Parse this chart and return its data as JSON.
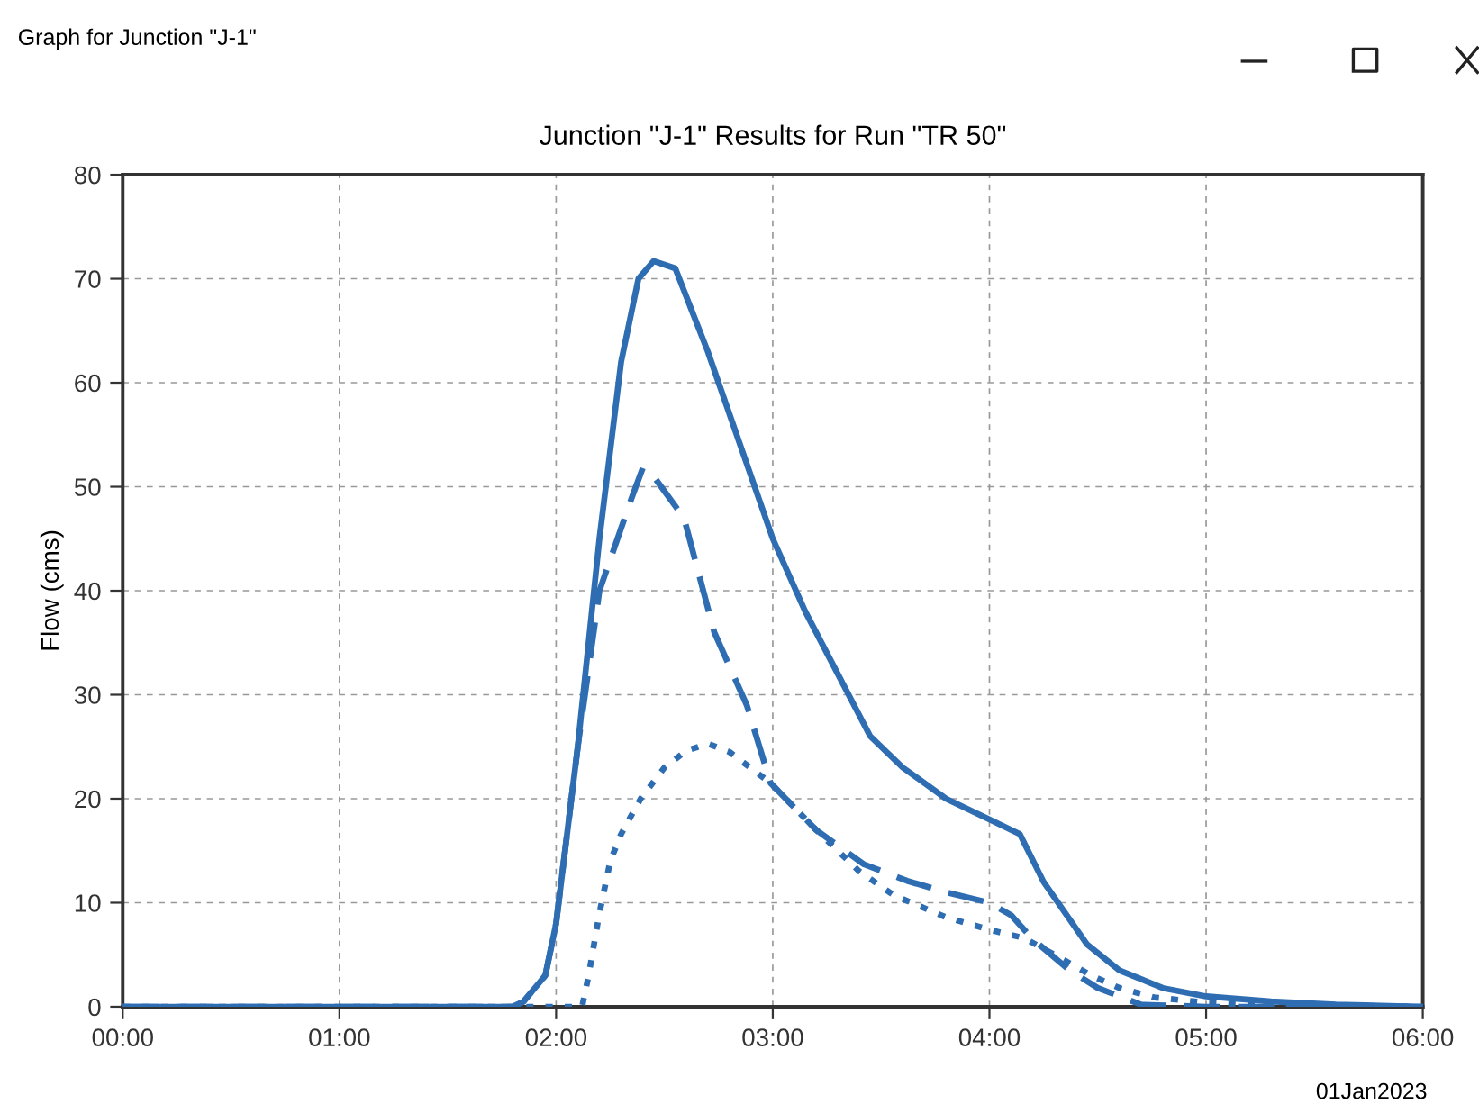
{
  "chart_data": {
    "type": "line",
    "title": "Junction \"J-1\" Results for Run \"TR 50\"",
    "ylabel": "Flow (cms)",
    "annotations": [
      "Graph for Junction \"J-1\"",
      "01Jan2023"
    ],
    "xlim": [
      0,
      6
    ],
    "ylim": [
      0,
      80
    ],
    "xticks": [
      {
        "value": 0,
        "label": "00:00"
      },
      {
        "value": 1,
        "label": "01:00"
      },
      {
        "value": 2,
        "label": "02:00"
      },
      {
        "value": 3,
        "label": "03:00"
      },
      {
        "value": 4,
        "label": "04:00"
      },
      {
        "value": 5,
        "label": "05:00"
      },
      {
        "value": 6,
        "label": "06:00"
      }
    ],
    "yticks": [
      0,
      10,
      20,
      30,
      40,
      50,
      60,
      70,
      80
    ],
    "grid": true,
    "marker": "none",
    "series": [
      {
        "color": "#2f6db3",
        "line_style": "solid",
        "x": [
          0,
          1.8,
          1.85,
          1.95,
          2.0,
          2.1,
          2.2,
          2.3,
          2.38,
          2.45,
          2.55,
          2.7,
          2.85,
          3.0,
          3.15,
          3.3,
          3.45,
          3.6,
          3.8,
          4.0,
          4.14,
          4.25,
          4.45,
          4.6,
          4.8,
          5.0,
          5.3,
          5.6,
          6.0
        ],
        "values": [
          0,
          0,
          0.5,
          3,
          8,
          25,
          45,
          62,
          70,
          71.7,
          71,
          63,
          54,
          45,
          38,
          32,
          26,
          23,
          20,
          18,
          16.6,
          12,
          6,
          3.5,
          1.8,
          1.0,
          0.5,
          0.2,
          0
        ]
      },
      {
        "color": "#2f6db3",
        "line_style": "dashed",
        "x": [
          0,
          1.8,
          1.85,
          1.95,
          2.0,
          2.1,
          2.2,
          2.3,
          2.35,
          2.4,
          2.45,
          2.59,
          2.73,
          2.88,
          2.99,
          3.2,
          3.42,
          3.62,
          3.8,
          4.0,
          4.1,
          4.2,
          4.37,
          4.5,
          4.7,
          5.0,
          6.0
        ],
        "values": [
          0,
          0,
          0.5,
          3,
          8,
          25,
          40,
          46,
          49,
          51.8,
          51,
          47,
          36,
          29,
          21.5,
          17,
          13.7,
          12.1,
          11,
          10,
          8.8,
          6.5,
          3.5,
          1.8,
          0.2,
          0,
          0
        ]
      },
      {
        "color": "#2f6db3",
        "line_style": "dotted",
        "x": [
          0,
          2.12,
          2.15,
          2.2,
          2.25,
          2.3,
          2.39,
          2.5,
          2.6,
          2.7,
          2.8,
          2.99,
          3.2,
          3.4,
          3.56,
          3.8,
          4.0,
          4.16,
          4.3,
          4.48,
          4.6,
          4.76,
          5.0,
          5.2,
          6.0
        ],
        "values": [
          0,
          0,
          3,
          9,
          14,
          16.6,
          20,
          23,
          24.6,
          25.3,
          24.5,
          21.5,
          17,
          13,
          10.7,
          8.6,
          7.4,
          6.6,
          5,
          2.9,
          1.8,
          0.9,
          0.4,
          0.2,
          0
        ]
      }
    ]
  }
}
